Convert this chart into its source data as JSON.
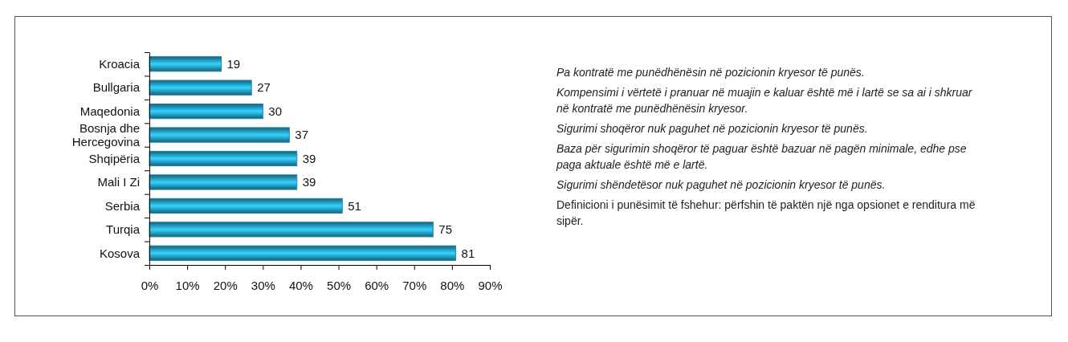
{
  "chart_data": {
    "type": "bar",
    "orientation": "horizontal",
    "categories": [
      "Kroacia",
      "Bullgaria",
      "Maqedonia",
      "Bosnja dhe Hercegovina",
      "Shqipëria",
      "Mali I Zi",
      "Serbia",
      "Turqia",
      "Kosova"
    ],
    "values": [
      19,
      27,
      30,
      37,
      39,
      39,
      51,
      75,
      81
    ],
    "color": "#1f86ad",
    "xlim": [
      0,
      90
    ],
    "xticks": [
      {
        "value": 0,
        "label": "0%"
      },
      {
        "value": 10,
        "label": "10%"
      },
      {
        "value": 20,
        "label": "20%"
      },
      {
        "value": 30,
        "label": "30%"
      },
      {
        "value": 40,
        "label": "40%"
      },
      {
        "value": 50,
        "label": "50%"
      },
      {
        "value": 60,
        "label": "60%"
      },
      {
        "value": 70,
        "label": "70%"
      },
      {
        "value": 80,
        "label": "80%"
      },
      {
        "value": 90,
        "label": "90%"
      }
    ],
    "data_labels": true,
    "grid": false,
    "annotations": [
      "Pa kontratë me punëdhënësin në pozicionin kryesor të punës.",
      "Kompensimi i vërtetë i pranuar në muajin e kaluar është më i lartë se sa ai i shkruar në kontratë me punëdhënësin kryesor.",
      "Sigurimi shoqëror nuk paguhet në pozicionin kryesor të punës.",
      "Baza për sigurimin shoqëror të paguar është bazuar në pagën minimale, edhe pse paga aktuale është më e lartë.",
      "Sigurimi shëndetësor nuk paguhet në pozicionin kryesor të punës.",
      "Definicioni i punësimit të fshehur: përfshin të paktën një nga opsionet e renditura më sipër."
    ]
  }
}
